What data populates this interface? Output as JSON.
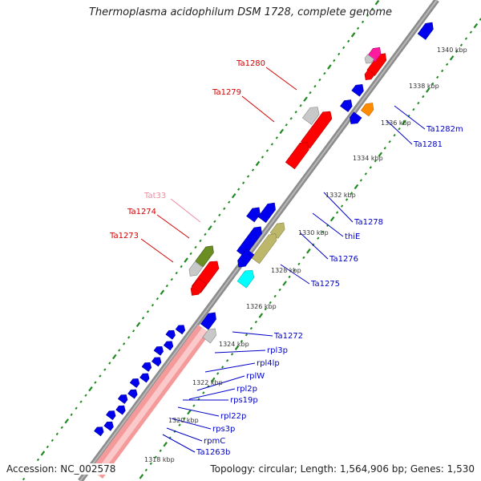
{
  "title": "Thermoplasma acidophilum DSM 1728, complete genome",
  "footer": {
    "accession": "Accession: NC_002578",
    "summary": "Topology: circular; Length: 1,564,906 bp; Genes: 1,530"
  },
  "colors": {
    "backbone": "#8c8c8c",
    "tick_green": "#1f8a1f",
    "label_red": "#d40000",
    "label_blue": "#0000c8",
    "label_pink": "#f08aa0",
    "gene_blue": "#0000ee",
    "gene_red": "#ff0000",
    "gene_grey": "#c8c8c8",
    "gene_olive": "#6b8e23",
    "gene_khaki": "#bdb76b",
    "gene_cyan": "#00ffff",
    "gene_orange": "#ff8c00",
    "gene_magenta": "#ff1aa0",
    "gene_salmon": "#f49a9a"
  },
  "kbp_markers": [
    "1340 kbp",
    "1338 kbp",
    "1336 kbp",
    "1334 kbp",
    "1332 kbp",
    "1330 kbp",
    "1328 kbp",
    "1326 kbp",
    "1324 kbp",
    "1322 kbp",
    "1320 kbp",
    "1318 kbp"
  ],
  "gene_labels": {
    "left": [
      {
        "name": "Ta1280",
        "kind": "red"
      },
      {
        "name": "Ta1279",
        "kind": "red"
      },
      {
        "name": "Tat33",
        "kind": "pink"
      },
      {
        "name": "Ta1274",
        "kind": "red"
      },
      {
        "name": "Ta1273",
        "kind": "red"
      }
    ],
    "right": [
      {
        "name": "Ta1282m"
      },
      {
        "name": "Ta1281"
      },
      {
        "name": "Ta1278"
      },
      {
        "name": "thiE"
      },
      {
        "name": "Ta1276"
      },
      {
        "name": "Ta1275"
      },
      {
        "name": "Ta1272"
      },
      {
        "name": "rpl3p"
      },
      {
        "name": "rpl4lp"
      },
      {
        "name": "rplW"
      },
      {
        "name": "rpl2p"
      },
      {
        "name": "rps19p"
      },
      {
        "name": "rpl22p"
      },
      {
        "name": "rps3p"
      },
      {
        "name": "rpmC"
      },
      {
        "name": "Ta1263b"
      }
    ]
  }
}
